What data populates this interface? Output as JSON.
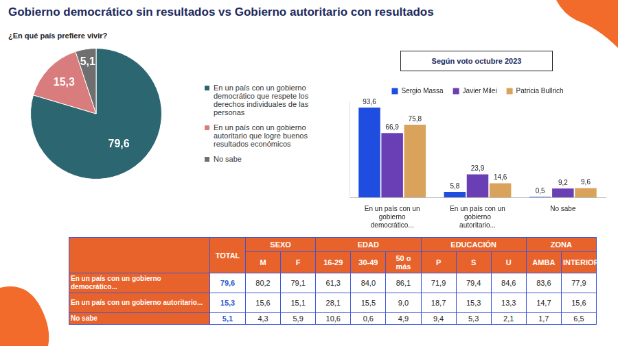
{
  "header": {
    "title": "Gobierno democrático sin resultados vs Gobierno autoritario con resultados",
    "subtitle": "¿En qué país prefiere vivir?"
  },
  "chart_data": [
    {
      "type": "pie",
      "categories": [
        "En un país con un gobierno democrático que respete los derechos individuales de las personas",
        "En un país con un gobierno autoritario que logre buenos resultados económicos",
        "No sabe"
      ],
      "values": [
        79.6,
        15.3,
        5.1
      ],
      "value_labels": [
        "79,6",
        "15,3",
        "5,1"
      ],
      "colors": [
        "#2b6671",
        "#d97c7d",
        "#6f6f6f"
      ],
      "data_labels": true,
      "legend": "right"
    },
    {
      "type": "bar",
      "title": "Según voto octubre 2023",
      "categories": [
        "En un país con un gobierno democrático...",
        "En un país con un gobierno autoritario...",
        "No sabe"
      ],
      "series": [
        {
          "name": "Sergio Massa",
          "color": "#1f4de0",
          "values": [
            93.6,
            5.8,
            0.5
          ],
          "value_labels": [
            "93,6",
            "5,8",
            "0,5"
          ]
        },
        {
          "name": "Javier Milei",
          "color": "#6a3fb5",
          "values": [
            66.9,
            23.9,
            9.2
          ],
          "value_labels": [
            "66,9",
            "23,9",
            "9,2"
          ]
        },
        {
          "name": "Patricia Bullrich",
          "color": "#d9a35c",
          "values": [
            75.8,
            14.6,
            9.6
          ],
          "value_labels": [
            "75,8",
            "14,6",
            "9,6"
          ]
        }
      ],
      "ylim": [
        0,
        100
      ],
      "grid": false,
      "legend": "top",
      "data_labels": true,
      "tick_labels": "x"
    }
  ],
  "table": {
    "total_label": "TOTAL",
    "groups": [
      {
        "label": "SEXO",
        "columns": [
          "M",
          "F"
        ]
      },
      {
        "label": "EDAD",
        "columns": [
          "16-29",
          "30-49",
          "50 o más"
        ]
      },
      {
        "label": "EDUCACIÓN",
        "columns": [
          "P",
          "S",
          "U"
        ]
      },
      {
        "label": "ZONA",
        "columns": [
          "AMBA",
          "INTERIOR"
        ]
      }
    ],
    "rows": [
      {
        "label": "En un país con un gobierno democrático...",
        "total": "79,6",
        "values": [
          "80,2",
          "79,1",
          "61,3",
          "84,0",
          "86,1",
          "71,9",
          "79,4",
          "84,6",
          "83,6",
          "77,9"
        ]
      },
      {
        "label": "En un país con un gobierno autoritario...",
        "total": "15,3",
        "values": [
          "15,6",
          "15,1",
          "28,1",
          "15,5",
          "9,0",
          "18,7",
          "15,3",
          "13,3",
          "14,7",
          "15,6"
        ]
      },
      {
        "label": "No sabe",
        "total": "5,1",
        "values": [
          "4,3",
          "5,9",
          "10,6",
          "0,6",
          "4,9",
          "9,4",
          "5,3",
          "2,1",
          "1,7",
          "6,5"
        ]
      }
    ]
  }
}
